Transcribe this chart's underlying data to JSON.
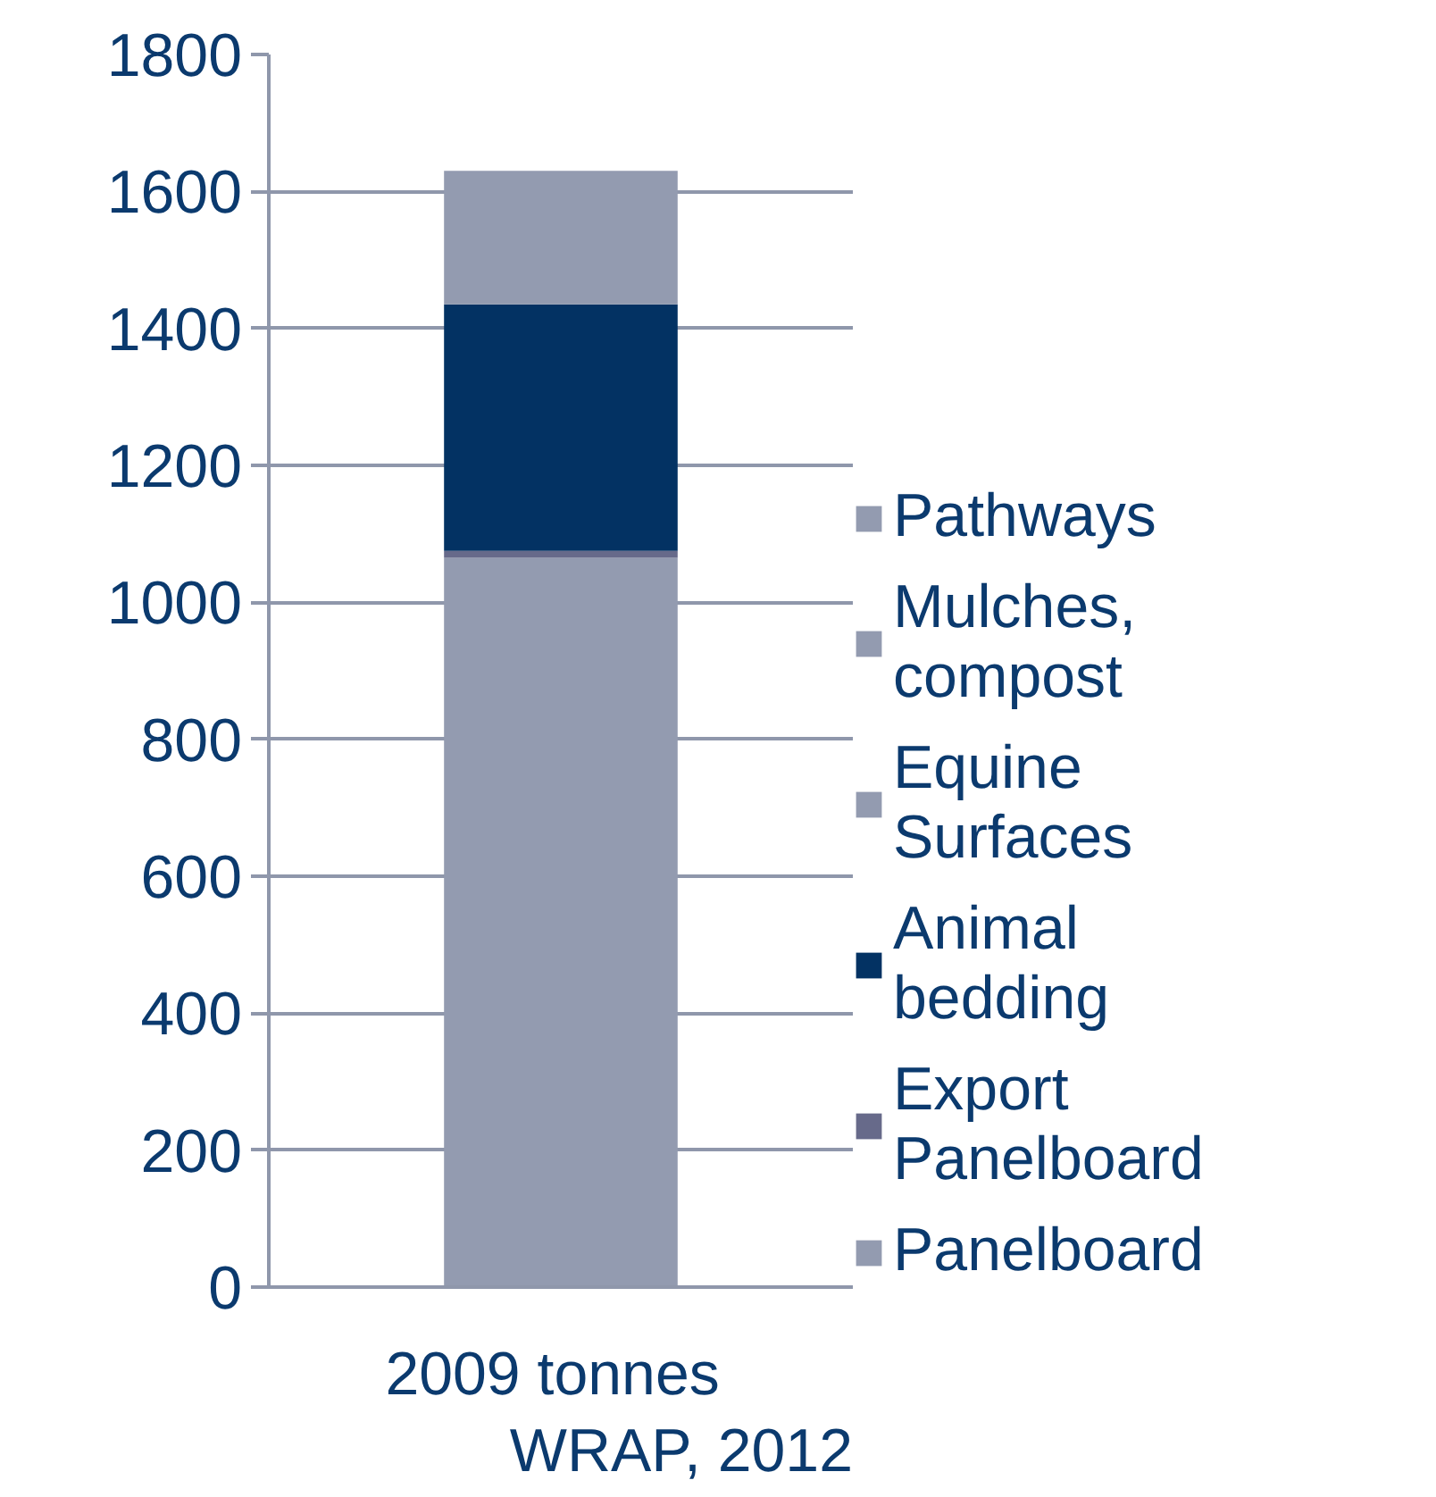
{
  "chart_data": {
    "type": "bar",
    "stacked": true,
    "categories": [
      "2009  tonnes"
    ],
    "series": [
      {
        "name": "Panelboard",
        "color": "#939bb0",
        "values": [
          1065
        ]
      },
      {
        "name": "Export Panelboard",
        "color": "#676a8a",
        "values": [
          10
        ]
      },
      {
        "name": "Animal bedding",
        "color": "#033263",
        "values": [
          360
        ]
      },
      {
        "name": "Equine Surfaces",
        "color": "#939bb0",
        "values": [
          0
        ]
      },
      {
        "name": "Mulches, compost",
        "color": "#939bb0",
        "values": [
          0
        ]
      },
      {
        "name": "Pathways",
        "color": "#939bb0",
        "values": [
          195
        ]
      }
    ],
    "ylim": [
      0,
      1800
    ],
    "yticks": [
      0,
      200,
      400,
      600,
      800,
      1000,
      1200,
      1400,
      1600,
      1800
    ],
    "grid": "y",
    "legend": "right",
    "annotations": [
      "WRAP, 2012"
    ]
  }
}
